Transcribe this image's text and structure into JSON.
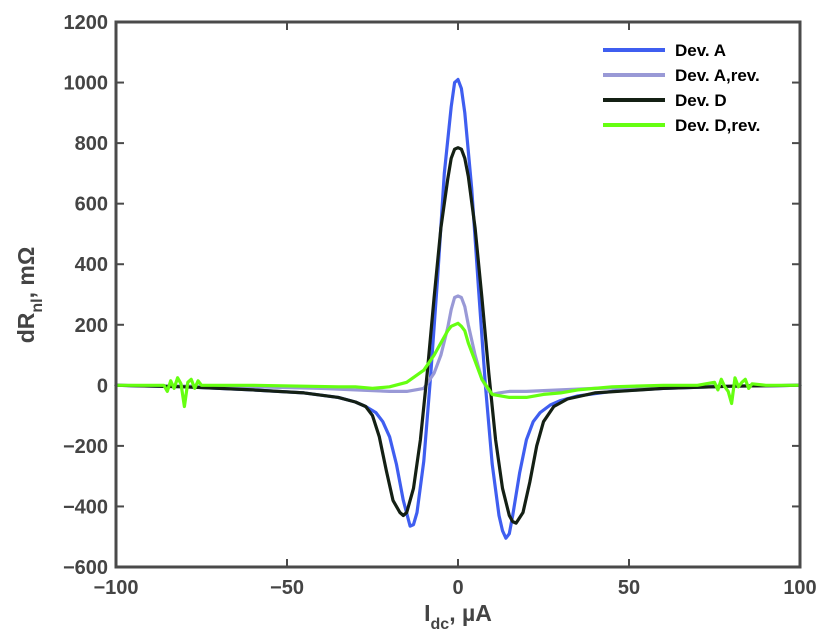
{
  "chart_data": {
    "type": "line",
    "title": "",
    "xlabel_main": "I",
    "xlabel_sub": "dc",
    "xlabel_rest": ", µA",
    "ylabel_main": "dR",
    "ylabel_sub": "nl",
    "ylabel_rest": ", mΩ",
    "xlim": [
      -100,
      100
    ],
    "ylim": [
      -600,
      1200
    ],
    "xticks": [
      -100,
      -50,
      0,
      50,
      100
    ],
    "xtick_labels": [
      "−100",
      "−50",
      "0",
      "50",
      "100"
    ],
    "yticks": [
      -600,
      -400,
      -200,
      0,
      200,
      400,
      600,
      800,
      1000,
      1200
    ],
    "ytick_labels": [
      "−600",
      "−400",
      "−200",
      "0",
      "200",
      "400",
      "600",
      "800",
      "1000",
      "1200"
    ],
    "grid": false,
    "legend_position": "top-right",
    "series": [
      {
        "name": "Dev. A",
        "color": "#3f5ef0",
        "x": [
          -100,
          -80,
          -60,
          -45,
          -35,
          -30,
          -27,
          -24,
          -22,
          -20,
          -18,
          -16,
          -14,
          -13,
          -12,
          -10,
          -8,
          -6,
          -4,
          -2,
          -1,
          0,
          1,
          2,
          4,
          6,
          8,
          10,
          12,
          13,
          14,
          15,
          16,
          18,
          20,
          22,
          24,
          27,
          30,
          35,
          45,
          60,
          80,
          100
        ],
        "y": [
          0,
          -5,
          -15,
          -25,
          -40,
          -55,
          -70,
          -90,
          -120,
          -170,
          -260,
          -380,
          -465,
          -460,
          -420,
          -250,
          30,
          350,
          700,
          920,
          1000,
          1010,
          980,
          900,
          650,
          320,
          0,
          -260,
          -430,
          -480,
          -505,
          -490,
          -430,
          -290,
          -180,
          -120,
          -90,
          -65,
          -50,
          -35,
          -20,
          -10,
          -3,
          0
        ]
      },
      {
        "name": "Dev. A,rev.",
        "color": "#9999d6",
        "x": [
          -100,
          -60,
          -40,
          -30,
          -20,
          -15,
          -10,
          -7,
          -5,
          -3,
          -2,
          -1,
          0,
          1,
          2,
          3,
          5,
          7,
          9,
          10,
          12,
          15,
          20,
          30,
          40,
          60,
          100
        ],
        "y": [
          0,
          -5,
          -10,
          -15,
          -20,
          -20,
          -10,
          40,
          100,
          190,
          250,
          290,
          295,
          290,
          260,
          200,
          100,
          20,
          -20,
          -30,
          -25,
          -20,
          -20,
          -15,
          -10,
          -5,
          0
        ]
      },
      {
        "name": "Dev. D",
        "color": "#142014",
        "x": [
          -100,
          -80,
          -60,
          -45,
          -35,
          -30,
          -27,
          -25,
          -23,
          -21,
          -19,
          -17,
          -16,
          -15,
          -13,
          -11,
          -9,
          -7,
          -5,
          -3,
          -2,
          -1,
          0,
          1,
          2,
          3,
          5,
          7,
          9,
          11,
          13,
          15,
          16,
          17,
          19,
          21,
          23,
          25,
          28,
          32,
          40,
          60,
          80,
          100
        ],
        "y": [
          0,
          -5,
          -15,
          -25,
          -40,
          -55,
          -70,
          -100,
          -170,
          -280,
          -380,
          -420,
          -430,
          -420,
          -340,
          -180,
          40,
          290,
          520,
          680,
          750,
          780,
          785,
          780,
          750,
          690,
          520,
          290,
          40,
          -180,
          -340,
          -430,
          -450,
          -455,
          -420,
          -320,
          -200,
          -120,
          -70,
          -45,
          -25,
          -10,
          -3,
          0
        ]
      },
      {
        "name": "Dev. D,rev.",
        "color": "#66ff11",
        "x": [
          -100,
          -90,
          -86,
          -85,
          -84,
          -83,
          -82,
          -81,
          -80,
          -79,
          -78,
          -77,
          -76,
          -75,
          -70,
          -60,
          -45,
          -35,
          -30,
          -25,
          -20,
          -15,
          -10,
          -7,
          -5,
          -3,
          -2,
          -1,
          0,
          1,
          2,
          3,
          5,
          7,
          10,
          15,
          20,
          25,
          30,
          35,
          45,
          60,
          70,
          75,
          76,
          77,
          78,
          79,
          80,
          81,
          82,
          83,
          84,
          85,
          86,
          90,
          100
        ],
        "y": [
          0,
          0,
          0,
          -20,
          15,
          -10,
          25,
          5,
          -70,
          10,
          20,
          -10,
          15,
          0,
          0,
          0,
          -3,
          -5,
          -5,
          -10,
          -5,
          10,
          50,
          100,
          140,
          180,
          195,
          200,
          205,
          195,
          180,
          140,
          80,
          20,
          -30,
          -40,
          -40,
          -30,
          -25,
          -15,
          -5,
          0,
          0,
          10,
          -15,
          20,
          -5,
          -20,
          -60,
          25,
          -5,
          10,
          20,
          -10,
          5,
          0,
          0
        ]
      }
    ]
  }
}
